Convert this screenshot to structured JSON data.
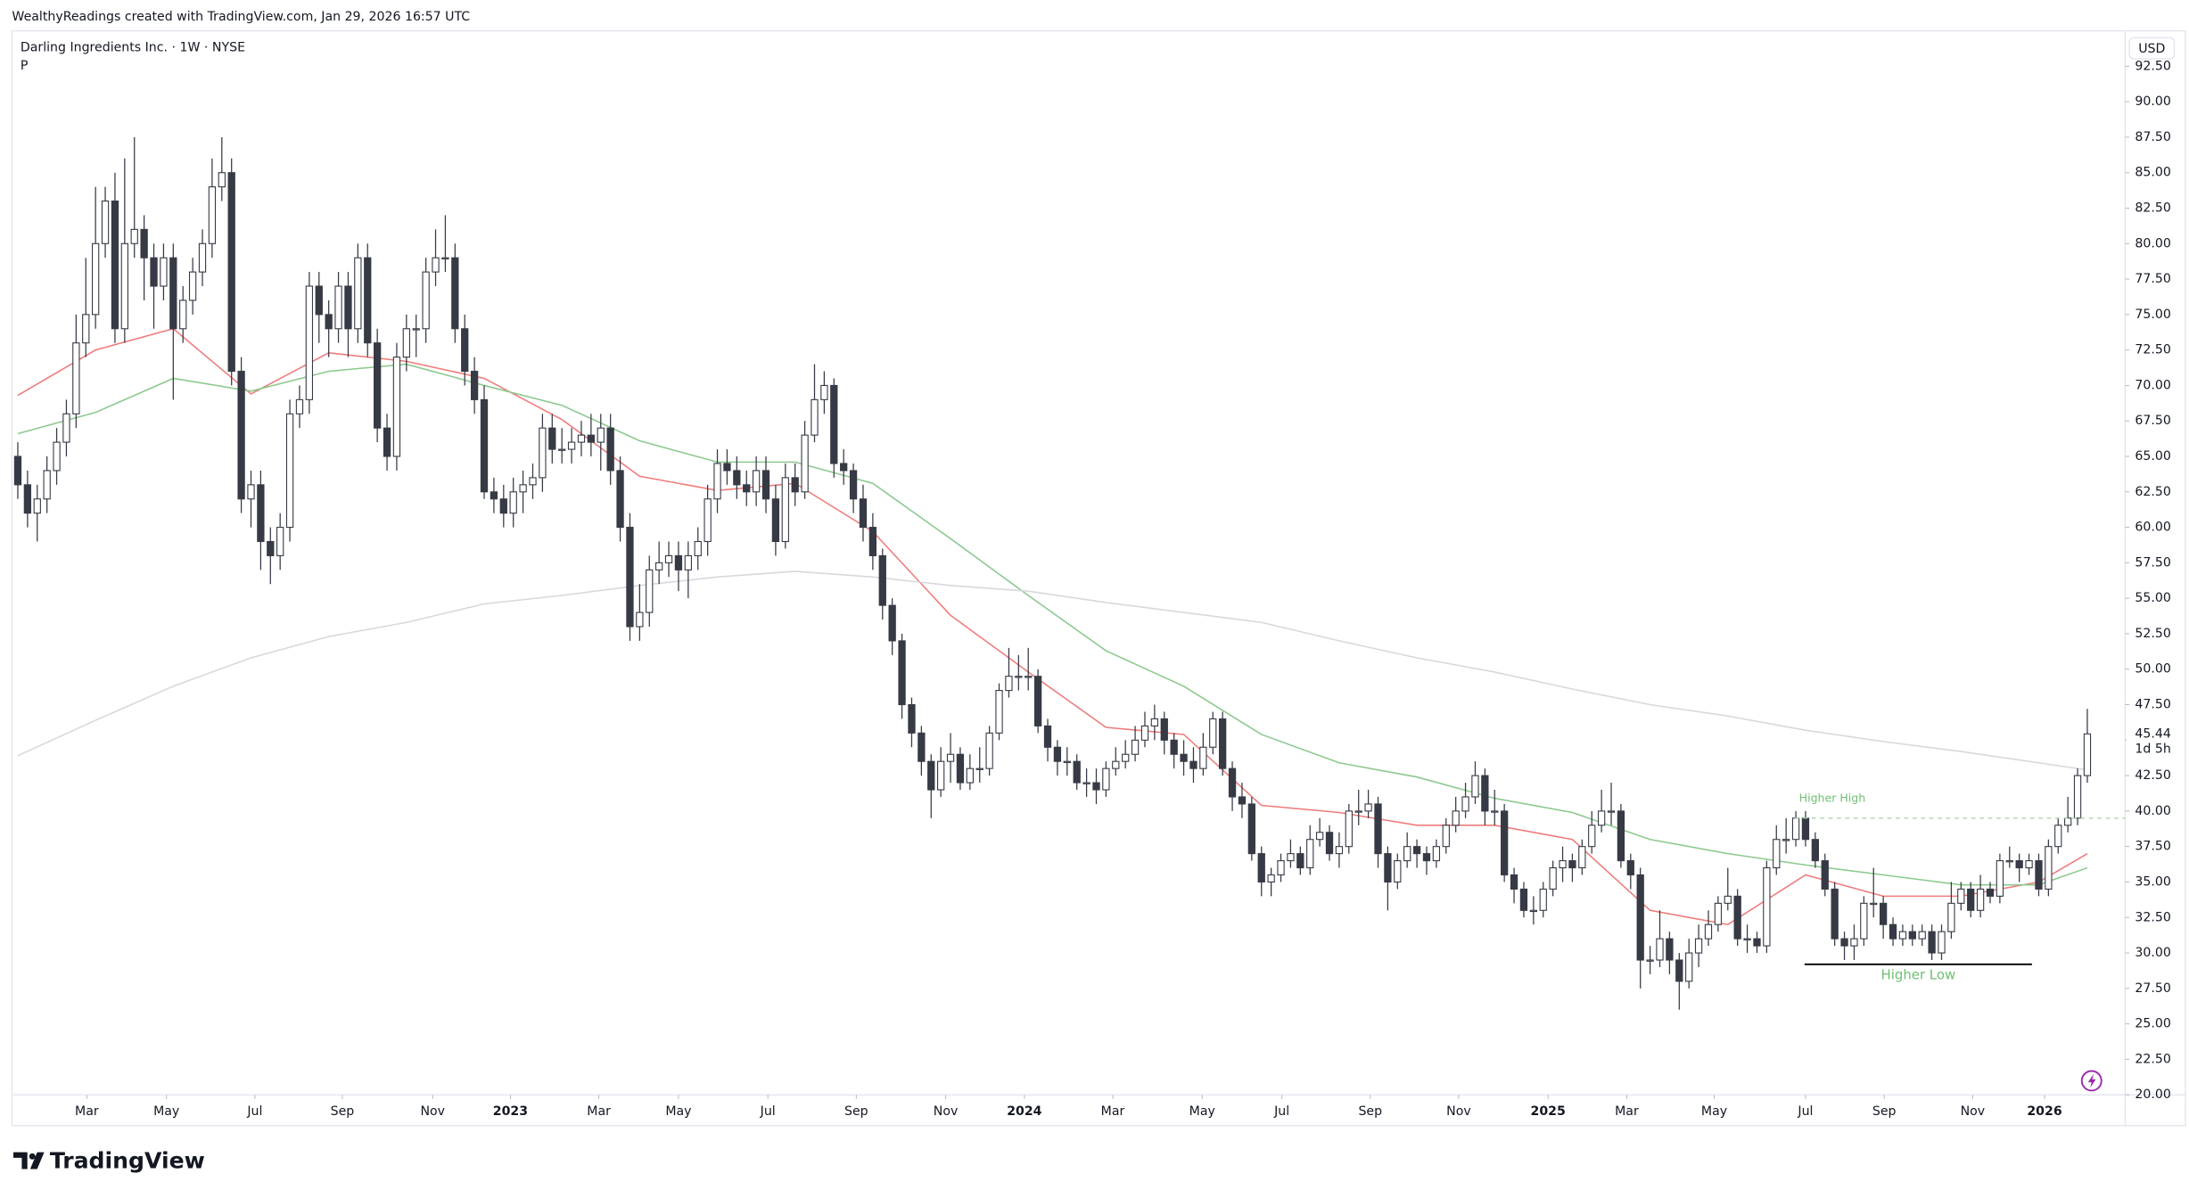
{
  "header": {
    "attribution": "WealthyReadings created with TradingView.com, Jan 29, 2026 16:57 UTC",
    "logo": "TradingView"
  },
  "chart_data": {
    "type": "candlestick",
    "title": "Darling Ingredients Inc. · 1W · NYSE",
    "subtitle": "P",
    "currency": "USD",
    "countdown": "1d 5h",
    "up_color": "#ffffff",
    "down_color": "#363a45",
    "wick_color": "#363a45",
    "open": [
      65,
      63,
      61,
      62,
      64,
      66,
      68,
      73,
      75,
      80,
      83,
      74,
      80,
      81,
      79,
      77,
      79,
      74,
      76,
      78,
      80,
      84,
      85,
      71,
      62,
      63,
      59,
      58,
      60,
      68,
      69,
      77,
      75,
      74,
      77,
      74,
      79,
      73,
      67,
      65,
      72,
      74,
      74,
      78,
      79,
      79,
      74,
      71,
      69,
      62.5,
      62,
      61,
      62.5,
      63,
      63.5,
      67,
      65.5,
      65.5,
      66,
      66.5,
      66,
      67,
      64,
      60,
      53,
      54,
      57,
      57.5,
      58,
      57,
      58,
      59,
      62,
      64.5,
      64,
      63,
      62.5,
      64,
      62,
      59,
      63.5,
      62.5,
      66.5,
      69,
      70,
      64.5,
      64,
      62,
      60,
      58,
      54.5,
      52,
      47.5,
      45.5,
      43.5,
      41.5,
      43.5,
      44,
      42,
      43,
      43,
      45.5,
      48.5,
      49.5,
      49.5,
      49.5,
      46,
      44.5,
      43.5,
      43.5,
      42,
      42,
      41.5,
      43,
      43.5,
      44,
      45,
      46,
      46.5,
      45,
      44,
      43.5,
      43,
      44.5,
      46.5,
      43,
      41,
      40.5,
      37,
      35,
      35.5,
      36.5,
      37,
      36,
      38,
      38.5,
      37,
      37.5,
      40,
      40,
      40.5,
      37,
      35,
      36.5,
      37.5,
      37,
      36.5,
      37.5,
      39,
      40,
      41,
      42.5,
      40,
      40,
      35.5,
      34.5,
      33,
      33,
      34.5,
      36,
      36.5,
      36,
      37.5,
      39,
      40,
      40,
      36.5,
      35.5,
      29.5,
      29.5,
      31,
      29.5,
      28,
      30,
      31,
      32,
      33.5,
      34,
      31,
      31,
      30.5,
      36,
      38,
      38,
      39.5,
      38,
      36.5,
      34.5,
      31,
      30.5,
      31,
      33.5,
      33.5,
      32,
      31,
      31.5,
      31,
      31.5,
      30,
      31.5,
      33.5,
      34.5,
      33,
      34.5,
      34,
      36.5,
      36.5,
      36,
      36.5,
      34.5,
      37.5,
      39,
      39.5,
      42.5
    ],
    "high": [
      66,
      64,
      63,
      65,
      67,
      69,
      75,
      79,
      84,
      84,
      85,
      86,
      87.5,
      82,
      80,
      80,
      80,
      77,
      79,
      81,
      86,
      87.5,
      86,
      72,
      64,
      64,
      60,
      61,
      69,
      70,
      78,
      78,
      76,
      78,
      78,
      80,
      80,
      74,
      68,
      73,
      75,
      75,
      79,
      81,
      82,
      80,
      75,
      72,
      70,
      63.5,
      63,
      63.5,
      64,
      64.5,
      68,
      68,
      67,
      67,
      67.5,
      68,
      68,
      68,
      65,
      61,
      56,
      58,
      59,
      59,
      59,
      59,
      60,
      63,
      65.5,
      65.5,
      65,
      64,
      65,
      65,
      63,
      64.5,
      64.5,
      67.5,
      71.5,
      71,
      70.5,
      65.5,
      64.5,
      63,
      61,
      58.5,
      55,
      52.5,
      48,
      46,
      44,
      44.5,
      45.5,
      44.5,
      44,
      44.5,
      46,
      49,
      51.5,
      51,
      51.5,
      50,
      46.5,
      45,
      44.5,
      44,
      43,
      43,
      43.5,
      44.5,
      45,
      46,
      47,
      47.5,
      47,
      45.5,
      45,
      44.5,
      45.5,
      47,
      47,
      43.5,
      42,
      41,
      37.5,
      36,
      37,
      38,
      37.5,
      39,
      39.5,
      39,
      38.5,
      40.5,
      41.5,
      41.5,
      41,
      37.5,
      37,
      38.5,
      38,
      37.5,
      38,
      39.5,
      41,
      42,
      43.5,
      43,
      41.5,
      40.5,
      36,
      35,
      34,
      35,
      36.5,
      37.5,
      37,
      38,
      40,
      41.5,
      42,
      40.5,
      37,
      36,
      30.5,
      33,
      31.5,
      30,
      31,
      32,
      33,
      34,
      36,
      34.5,
      32,
      31.5,
      36.5,
      39,
      39.5,
      40,
      40,
      38.5,
      37,
      35,
      31.5,
      32,
      34,
      36,
      34,
      32.5,
      32,
      32,
      32,
      32,
      32,
      35,
      35,
      35,
      35.5,
      35,
      37,
      37.5,
      37,
      37,
      37,
      38,
      39.5,
      41,
      43,
      47.2
    ],
    "low": [
      62,
      60,
      59,
      61,
      63,
      65,
      67,
      72,
      74,
      79,
      73,
      73,
      79,
      76,
      74,
      76,
      69,
      73,
      75,
      77,
      79,
      83,
      70,
      61,
      60,
      57,
      56,
      57,
      59,
      67,
      68,
      73,
      72,
      73,
      72,
      73,
      72,
      66,
      64,
      64,
      71,
      72,
      73,
      77,
      78,
      73,
      70,
      68,
      62,
      61,
      60,
      60,
      61,
      62,
      62.5,
      64.5,
      64.5,
      64.5,
      65,
      65,
      64,
      63,
      59,
      52,
      52,
      53,
      56,
      56.5,
      55.5,
      55,
      57,
      58,
      61,
      63,
      62,
      61.5,
      61.5,
      61,
      58,
      58.5,
      61.5,
      62,
      66,
      68,
      63.5,
      63,
      61,
      59,
      57,
      53.5,
      51,
      46.5,
      44.5,
      42.5,
      39.5,
      41,
      42,
      41.5,
      41.5,
      42,
      42.5,
      45,
      48,
      48.5,
      48.5,
      45.5,
      43.5,
      42.5,
      42.5,
      41.5,
      41,
      40.5,
      41,
      42.5,
      43,
      43.5,
      44.5,
      45,
      44,
      43,
      42.5,
      42,
      42.5,
      44,
      42.5,
      40,
      39.5,
      36.5,
      34,
      34,
      35,
      36,
      35.5,
      35.5,
      37.5,
      36.5,
      36,
      37,
      39,
      39.5,
      36,
      33,
      34.5,
      36,
      36,
      35.5,
      36,
      37,
      38.5,
      39.5,
      40.5,
      39,
      39,
      35,
      33.5,
      32.5,
      32,
      32.5,
      34,
      35,
      35,
      35.5,
      37,
      38.5,
      39,
      36,
      34.5,
      27.5,
      28.5,
      29,
      28.5,
      26,
      27.5,
      29,
      30.5,
      31.5,
      33,
      30.5,
      30,
      30,
      30,
      35.5,
      37,
      37.5,
      37.5,
      36,
      34,
      30.5,
      29.5,
      29.5,
      30.5,
      32.5,
      31,
      30.5,
      30.5,
      30.5,
      30.5,
      29.5,
      29.5,
      31,
      33,
      32.5,
      32.5,
      33.5,
      33.5,
      36,
      35,
      35.5,
      34,
      34,
      37,
      38.5,
      39,
      42
    ],
    "close": [
      63,
      61,
      62,
      64,
      66,
      68,
      73,
      75,
      80,
      83,
      74,
      80,
      81,
      79,
      77,
      79,
      74,
      76,
      78,
      80,
      84,
      85,
      71,
      62,
      63,
      59,
      58,
      60,
      68,
      69,
      77,
      75,
      74,
      77,
      74,
      79,
      73,
      67,
      65,
      72,
      74,
      74,
      78,
      79,
      79,
      74,
      71,
      69,
      62.5,
      62,
      61,
      62.5,
      63,
      63.5,
      67,
      65.5,
      65.5,
      66,
      66.5,
      66,
      67,
      64,
      60,
      53,
      54,
      57,
      57.5,
      58,
      57,
      58,
      59,
      62,
      64.5,
      64,
      63,
      62.5,
      64,
      62,
      59,
      63.5,
      62.5,
      66.5,
      69,
      70,
      64.5,
      64,
      62,
      60,
      58,
      54.5,
      52,
      47.5,
      45.5,
      43.5,
      41.5,
      43.5,
      44,
      42,
      43,
      43,
      45.5,
      48.5,
      49.5,
      49.5,
      49.5,
      46,
      44.5,
      43.5,
      43.5,
      42,
      42,
      41.5,
      43,
      43.5,
      44,
      45,
      46,
      46.5,
      45,
      44,
      43.5,
      43,
      44.5,
      46.5,
      43,
      41,
      40.5,
      37,
      35,
      35.5,
      36.5,
      37,
      36,
      38,
      38.5,
      37,
      37.5,
      40,
      40,
      40.5,
      37,
      35,
      36.5,
      37.5,
      37,
      36.5,
      37.5,
      39,
      40,
      41,
      42.5,
      40,
      40,
      35.5,
      34.5,
      33,
      33,
      34.5,
      36,
      36.5,
      36,
      37.5,
      39,
      40,
      40,
      36.5,
      35.5,
      29.5,
      29.5,
      31,
      29.5,
      28,
      30,
      31,
      32,
      33.5,
      34,
      31,
      31,
      30.5,
      36,
      38,
      38,
      39.5,
      38,
      36.5,
      34.5,
      31,
      30.5,
      31,
      33.5,
      33.5,
      32,
      31,
      31.5,
      31,
      31.5,
      30,
      31.5,
      33.5,
      34.5,
      33,
      34.5,
      34,
      36.5,
      36.5,
      36,
      36.5,
      34.5,
      37.5,
      39,
      39.5,
      42.5,
      45.44
    ],
    "xlim": [
      -0.6,
      216.9
    ],
    "xticks": [
      {
        "value": 7.1,
        "label": "Mar"
      },
      {
        "value": 15.3,
        "label": "May"
      },
      {
        "value": 24.4,
        "label": "Jul"
      },
      {
        "value": 33.4,
        "label": "Sep"
      },
      {
        "value": 42.7,
        "label": "Nov"
      },
      {
        "value": 50.7,
        "label": "2023"
      },
      {
        "value": 59.8,
        "label": "Mar"
      },
      {
        "value": 68.0,
        "label": "May"
      },
      {
        "value": 77.2,
        "label": "Jul"
      },
      {
        "value": 86.3,
        "label": "Sep"
      },
      {
        "value": 95.5,
        "label": "Nov"
      },
      {
        "value": 103.6,
        "label": "2024"
      },
      {
        "value": 112.7,
        "label": "Mar"
      },
      {
        "value": 121.9,
        "label": "May"
      },
      {
        "value": 130.1,
        "label": "Jul"
      },
      {
        "value": 139.2,
        "label": "Sep"
      },
      {
        "value": 148.3,
        "label": "Nov"
      },
      {
        "value": 157.5,
        "label": "2025"
      },
      {
        "value": 165.6,
        "label": "Mar"
      },
      {
        "value": 174.6,
        "label": "May"
      },
      {
        "value": 184.0,
        "label": "Jul"
      },
      {
        "value": 192.1,
        "label": "Sep"
      },
      {
        "value": 201.2,
        "label": "Nov"
      },
      {
        "value": 208.6,
        "label": "2026"
      }
    ],
    "ylim": [
      20,
      95
    ],
    "yticks": [
      {
        "value": 20,
        "label": "20.00"
      },
      {
        "value": 22.5,
        "label": "22.50"
      },
      {
        "value": 25,
        "label": "25.00"
      },
      {
        "value": 27.5,
        "label": "27.50"
      },
      {
        "value": 30,
        "label": "30.00"
      },
      {
        "value": 32.5,
        "label": "32.50"
      },
      {
        "value": 35,
        "label": "35.00"
      },
      {
        "value": 37.5,
        "label": "37.50"
      },
      {
        "value": 40,
        "label": "40.00"
      },
      {
        "value": 42.5,
        "label": "42.50"
      },
      {
        "value": 45,
        "label": "45.00"
      },
      {
        "value": 47.5,
        "label": "47.50"
      },
      {
        "value": 50,
        "label": "50.00"
      },
      {
        "value": 52.5,
        "label": "52.50"
      },
      {
        "value": 55,
        "label": "55.00"
      },
      {
        "value": 57.5,
        "label": "57.50"
      },
      {
        "value": 60,
        "label": "60.00"
      },
      {
        "value": 62.5,
        "label": "62.50"
      },
      {
        "value": 65,
        "label": "65.00"
      },
      {
        "value": 67.5,
        "label": "67.50"
      },
      {
        "value": 70,
        "label": "70.00"
      },
      {
        "value": 72.5,
        "label": "72.50"
      },
      {
        "value": 75,
        "label": "75.00"
      },
      {
        "value": 77.5,
        "label": "77.50"
      },
      {
        "value": 80,
        "label": "80.00"
      },
      {
        "value": 82.5,
        "label": "82.50"
      },
      {
        "value": 85,
        "label": "85.00"
      },
      {
        "value": 87.5,
        "label": "87.50"
      },
      {
        "value": 90,
        "label": "90.00"
      },
      {
        "value": 92.5,
        "label": "92.50"
      }
    ],
    "moving_averages": {
      "x": [
        0,
        8,
        16,
        24,
        32,
        40,
        48,
        56,
        64,
        72,
        80,
        88,
        96,
        104,
        112,
        120,
        128,
        136,
        144,
        152,
        160,
        168,
        176,
        184,
        192,
        200,
        208,
        213
      ],
      "lines": [
        {
          "color": "#ef7b7b",
          "values": [
            69.3,
            72.5,
            74,
            69.4,
            72.3,
            71.7,
            70.5,
            67.6,
            63.6,
            62.6,
            63.1,
            59.7,
            53.8,
            49.8,
            45.9,
            45.4,
            40.4,
            39.9,
            39,
            39,
            38,
            33,
            32,
            35.5,
            34,
            34,
            35,
            37
          ]
        },
        {
          "color": "#8cc98e",
          "values": [
            66.6,
            68.1,
            70.5,
            69.6,
            71,
            71.5,
            70,
            68.6,
            66.1,
            64.6,
            64.6,
            63.1,
            59.2,
            55.2,
            51.3,
            48.8,
            45.4,
            43.4,
            42.4,
            40.9,
            39.9,
            38,
            37,
            36.2,
            35.5,
            34.8,
            34.8,
            36
          ]
        },
        {
          "color": "#d6d8dd",
          "values": [
            43.9,
            46.4,
            48.8,
            50.8,
            52.3,
            53.3,
            54.6,
            55.2,
            55.9,
            56.5,
            56.9,
            56.5,
            55.9,
            55.5,
            54.7,
            54,
            53.3,
            52,
            50.8,
            49.8,
            48.6,
            47.5,
            46.7,
            45.7,
            44.9,
            44.2,
            43.4,
            42.9
          ]
        }
      ]
    },
    "annotations": [
      {
        "text": "Higher High",
        "level": 39.5,
        "start": 182.9,
        "color": "#6fbf73",
        "line_color": "#9fd3a2",
        "style": "dashed"
      },
      {
        "text": "Higher Low",
        "level": 29.2,
        "start": 183.9,
        "end": 207.3,
        "color": "#6fbf73",
        "line_color": "#000000",
        "style": "solid"
      }
    ]
  }
}
